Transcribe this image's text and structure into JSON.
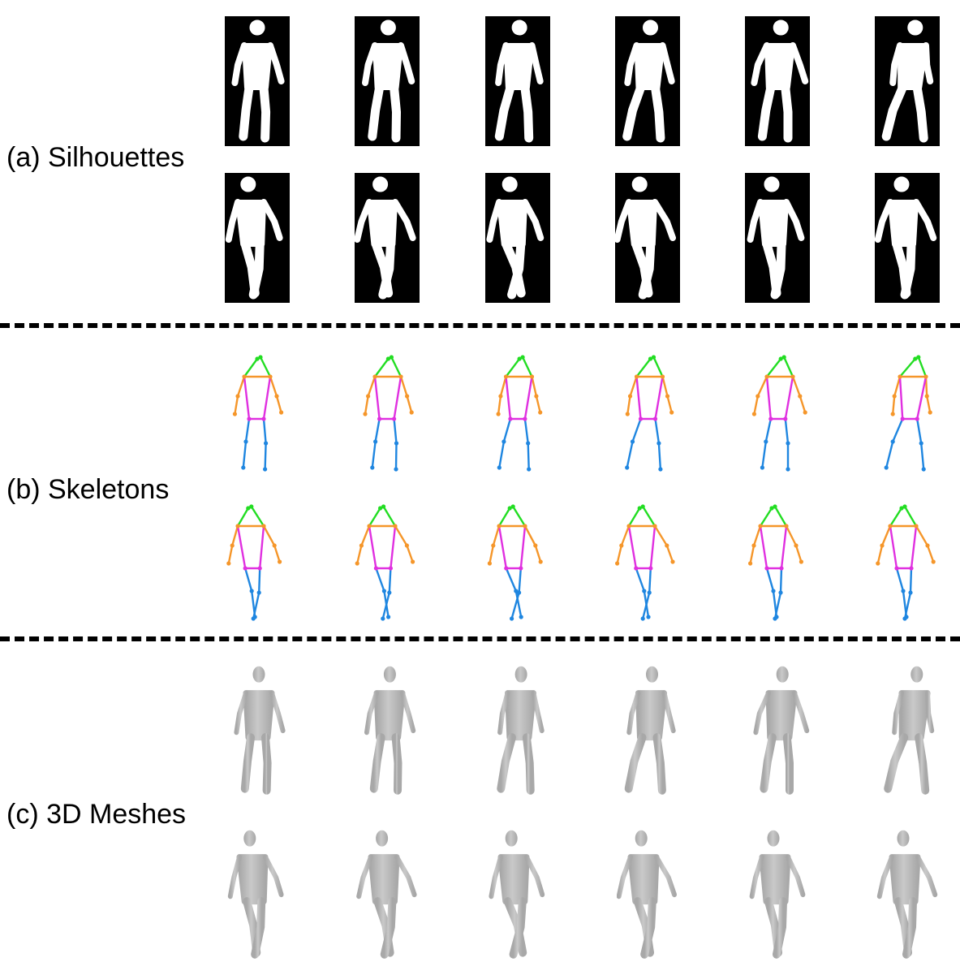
{
  "labels": {
    "silhouettes": "(a) Silhouettes",
    "skeletons": "(b) Skeletons",
    "meshes": "(c) 3D Meshes"
  },
  "colors": {
    "silhouette_bg": "#000000",
    "silhouette_fg": "#ffffff",
    "skeleton_head": "#22dd22",
    "skeleton_arms": "#f5962a",
    "skeleton_torso": "#e030e0",
    "skeleton_legs": "#1f86e0",
    "mesh_body": "#c9c9c9",
    "mesh_shade": "#a8a8a8",
    "divider": "#000000"
  },
  "frames_per_row": 6,
  "rows_per_group": 2
}
